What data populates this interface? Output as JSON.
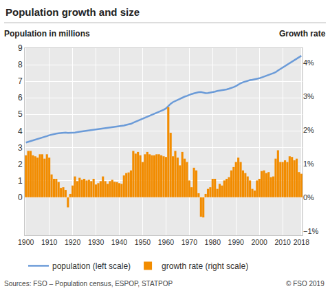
{
  "chart_data": {
    "type": "bar",
    "title": "Population growth and size",
    "ylabel": "Population in millions",
    "y2label": "Growth rate",
    "source": "Sources: FSO – Population census, ESPOP, STATPOP",
    "credit": "© FSO 2019",
    "x": [
      1900,
      1901,
      1902,
      1903,
      1904,
      1905,
      1906,
      1907,
      1908,
      1909,
      1910,
      1911,
      1912,
      1913,
      1914,
      1915,
      1916,
      1917,
      1918,
      1919,
      1920,
      1921,
      1922,
      1923,
      1924,
      1925,
      1926,
      1927,
      1928,
      1929,
      1930,
      1931,
      1932,
      1933,
      1934,
      1935,
      1936,
      1937,
      1938,
      1939,
      1940,
      1941,
      1942,
      1943,
      1944,
      1945,
      1946,
      1947,
      1948,
      1949,
      1950,
      1951,
      1952,
      1953,
      1954,
      1955,
      1956,
      1957,
      1958,
      1959,
      1960,
      1961,
      1962,
      1963,
      1964,
      1965,
      1966,
      1967,
      1968,
      1969,
      1970,
      1971,
      1972,
      1973,
      1974,
      1975,
      1976,
      1977,
      1978,
      1979,
      1980,
      1981,
      1982,
      1983,
      1984,
      1985,
      1986,
      1987,
      1988,
      1989,
      1990,
      1991,
      1992,
      1993,
      1994,
      1995,
      1996,
      1997,
      1998,
      1999,
      2000,
      2001,
      2002,
      2003,
      2004,
      2005,
      2006,
      2007,
      2008,
      2009,
      2010,
      2011,
      2012,
      2013,
      2014,
      2015,
      2016,
      2017,
      2018
    ],
    "series": [
      {
        "name": "population (left scale)",
        "type": "line",
        "axis": "y",
        "color": "#6b9bd8",
        "values": [
          3.3,
          3.34,
          3.38,
          3.43,
          3.47,
          3.51,
          3.56,
          3.6,
          3.64,
          3.69,
          3.74,
          3.78,
          3.81,
          3.84,
          3.86,
          3.88,
          3.89,
          3.9,
          3.88,
          3.88,
          3.89,
          3.9,
          3.93,
          3.95,
          3.97,
          3.99,
          4.01,
          4.03,
          4.05,
          4.06,
          4.07,
          4.09,
          4.11,
          4.13,
          4.15,
          4.17,
          4.19,
          4.2,
          4.22,
          4.24,
          4.26,
          4.29,
          4.33,
          4.37,
          4.4,
          4.43,
          4.5,
          4.56,
          4.62,
          4.66,
          4.72,
          4.78,
          4.84,
          4.89,
          4.95,
          5.02,
          5.08,
          5.15,
          5.22,
          5.28,
          5.36,
          5.51,
          5.64,
          5.74,
          5.81,
          5.86,
          5.92,
          5.99,
          6.07,
          6.12,
          6.19,
          6.23,
          6.27,
          6.31,
          6.34,
          6.35,
          6.3,
          6.28,
          6.29,
          6.31,
          6.34,
          6.37,
          6.41,
          6.43,
          6.46,
          6.48,
          6.51,
          6.55,
          6.59,
          6.65,
          6.71,
          6.8,
          6.88,
          6.94,
          6.99,
          7.04,
          7.07,
          7.09,
          7.11,
          7.14,
          7.18,
          7.23,
          7.29,
          7.34,
          7.39,
          7.44,
          7.49,
          7.55,
          7.65,
          7.74,
          7.82,
          7.9,
          7.99,
          8.08,
          8.18,
          8.28,
          8.37,
          8.45,
          8.54
        ]
      },
      {
        "name": "growth rate (right scale)",
        "type": "bar",
        "axis": "y2",
        "color": "#f28c00",
        "values": [
          1.25,
          1.38,
          1.38,
          1.25,
          1.22,
          1.18,
          1.28,
          1.28,
          1.15,
          1.28,
          1.18,
          0.68,
          0.55,
          0.55,
          0.45,
          0.28,
          0.3,
          0.22,
          -0.3,
          0.1,
          0.35,
          0.62,
          0.48,
          0.58,
          0.52,
          0.55,
          0.5,
          0.52,
          0.48,
          0.55,
          0.38,
          0.42,
          0.48,
          0.62,
          0.48,
          0.4,
          0.48,
          0.52,
          0.46,
          0.45,
          0.42,
          0.4,
          0.65,
          0.72,
          0.74,
          0.8,
          1.38,
          1.3,
          1.35,
          1.25,
          1.05,
          1.28,
          1.35,
          1.28,
          1.25,
          1.25,
          1.28,
          1.28,
          1.25,
          1.22,
          1.2,
          2.68,
          1.92,
          1.22,
          1.38,
          1.18,
          0.95,
          1.35,
          1.15,
          1.05,
          0.5,
          0.3,
          0.88,
          0.8,
          0.12,
          -0.58,
          -0.6,
          0.1,
          0.25,
          0.3,
          0.55,
          0.55,
          0.25,
          0.4,
          0.35,
          0.5,
          0.55,
          0.6,
          0.8,
          0.9,
          1.05,
          1.18,
          1.05,
          0.8,
          0.72,
          0.62,
          0.5,
          0.25,
          0.2,
          0.5,
          0.55,
          0.78,
          0.8,
          0.72,
          0.75,
          0.6,
          0.62,
          1.15,
          1.4,
          1.05,
          1.05,
          1.1,
          1.05,
          1.22,
          1.2,
          1.1,
          1.15,
          0.75,
          0.7
        ]
      }
    ],
    "xlim": [
      1899.5,
      2018.5
    ],
    "xticks": [
      1900,
      1910,
      1920,
      1930,
      1940,
      1950,
      1960,
      1970,
      1980,
      1990,
      2000,
      2010,
      2018
    ],
    "ylim": [
      -2.3,
      9
    ],
    "yticks": [
      0,
      1,
      2,
      3,
      4,
      5,
      6,
      7,
      8,
      9
    ],
    "y2lim": [
      -1.13,
      4.44
    ],
    "y2ticks": [
      {
        "value": -1,
        "label": "−1%"
      },
      {
        "value": 0,
        "label": "0%"
      },
      {
        "value": 1,
        "label": "1%"
      },
      {
        "value": 2,
        "label": "2%"
      },
      {
        "value": 3,
        "label": "3%"
      },
      {
        "value": 4,
        "label": "4%"
      }
    ],
    "grid": true,
    "legend": "bottom"
  }
}
